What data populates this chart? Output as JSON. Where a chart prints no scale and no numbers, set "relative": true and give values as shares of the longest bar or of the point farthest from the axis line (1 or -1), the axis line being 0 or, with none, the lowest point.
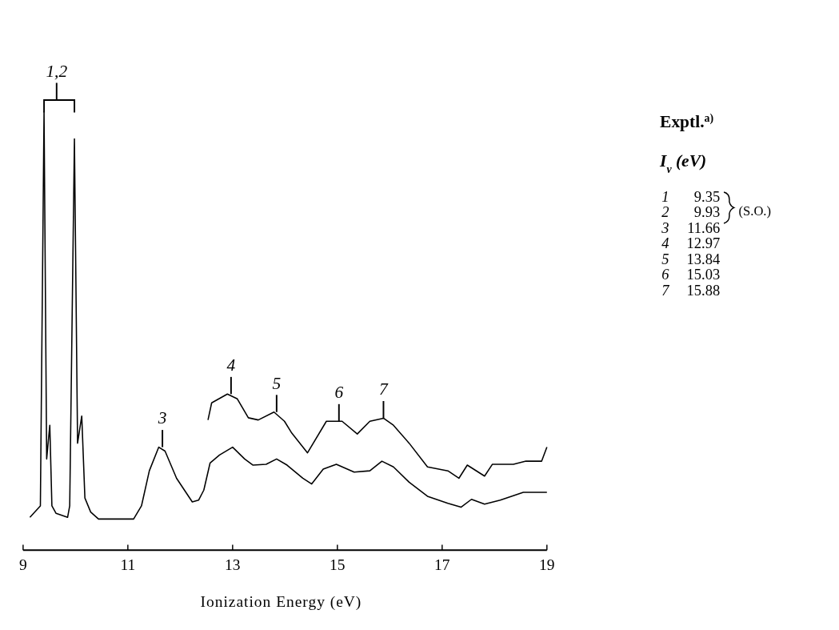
{
  "chart_data": {
    "type": "line",
    "relative": true,
    "xlabel": "Ionization Energy (eV)",
    "xlim": [
      9,
      19
    ],
    "xticks": [
      9,
      11,
      13,
      15,
      17,
      19
    ],
    "legend": false,
    "grid": false,
    "marker": "none",
    "line_style": "solid",
    "series": [
      {
        "color": "#000000",
        "x": [
          9.13,
          9.33,
          9.4,
          9.45,
          9.51,
          9.55,
          9.63,
          9.85,
          9.89,
          9.98,
          10.04,
          10.12,
          10.18,
          10.29,
          10.44,
          11.11,
          11.26,
          11.41,
          11.59,
          11.71,
          11.93,
          12.23,
          12.35,
          12.45,
          12.57,
          12.75,
          13.0,
          13.23,
          13.39,
          13.64,
          13.84,
          14.04,
          14.34,
          14.51,
          14.73,
          14.98,
          15.32,
          15.62,
          15.85,
          16.07,
          16.37,
          16.72,
          17.11,
          17.36,
          17.56,
          17.81,
          18.11,
          18.55,
          19.0
        ],
        "values": [
          0.075,
          0.101,
          1.0,
          0.208,
          0.285,
          0.101,
          0.084,
          0.075,
          0.101,
          0.938,
          0.244,
          0.306,
          0.119,
          0.087,
          0.071,
          0.071,
          0.101,
          0.181,
          0.235,
          0.226,
          0.164,
          0.11,
          0.114,
          0.137,
          0.199,
          0.217,
          0.235,
          0.208,
          0.194,
          0.196,
          0.208,
          0.194,
          0.164,
          0.151,
          0.185,
          0.196,
          0.178,
          0.181,
          0.203,
          0.19,
          0.155,
          0.123,
          0.107,
          0.098,
          0.116,
          0.105,
          0.114,
          0.132,
          0.132
        ]
      },
      {
        "color": "#000000",
        "x": [
          12.53,
          12.6,
          12.9,
          13.09,
          13.3,
          13.49,
          13.79,
          13.99,
          14.13,
          14.43,
          14.79,
          15.09,
          15.38,
          15.62,
          15.88,
          16.07,
          16.37,
          16.72,
          17.11,
          17.32,
          17.48,
          17.81,
          17.96,
          18.36,
          18.6,
          18.9,
          19.0
        ],
        "values": [
          0.297,
          0.336,
          0.356,
          0.345,
          0.302,
          0.297,
          0.315,
          0.294,
          0.267,
          0.222,
          0.294,
          0.294,
          0.265,
          0.294,
          0.301,
          0.285,
          0.244,
          0.19,
          0.181,
          0.164,
          0.194,
          0.169,
          0.196,
          0.196,
          0.203,
          0.203,
          0.235
        ]
      }
    ],
    "annotations": [
      "Exptl.$^{a)}$",
      "I$_{v}$ (eV)",
      "1 9.35",
      "2 9.93",
      "3 11.66",
      "4 12.97",
      "5 13.84",
      "6 15.03",
      "7 15.88",
      "(S.O.)",
      "1,2",
      "3",
      "4",
      "5",
      "6",
      "7"
    ]
  }
}
